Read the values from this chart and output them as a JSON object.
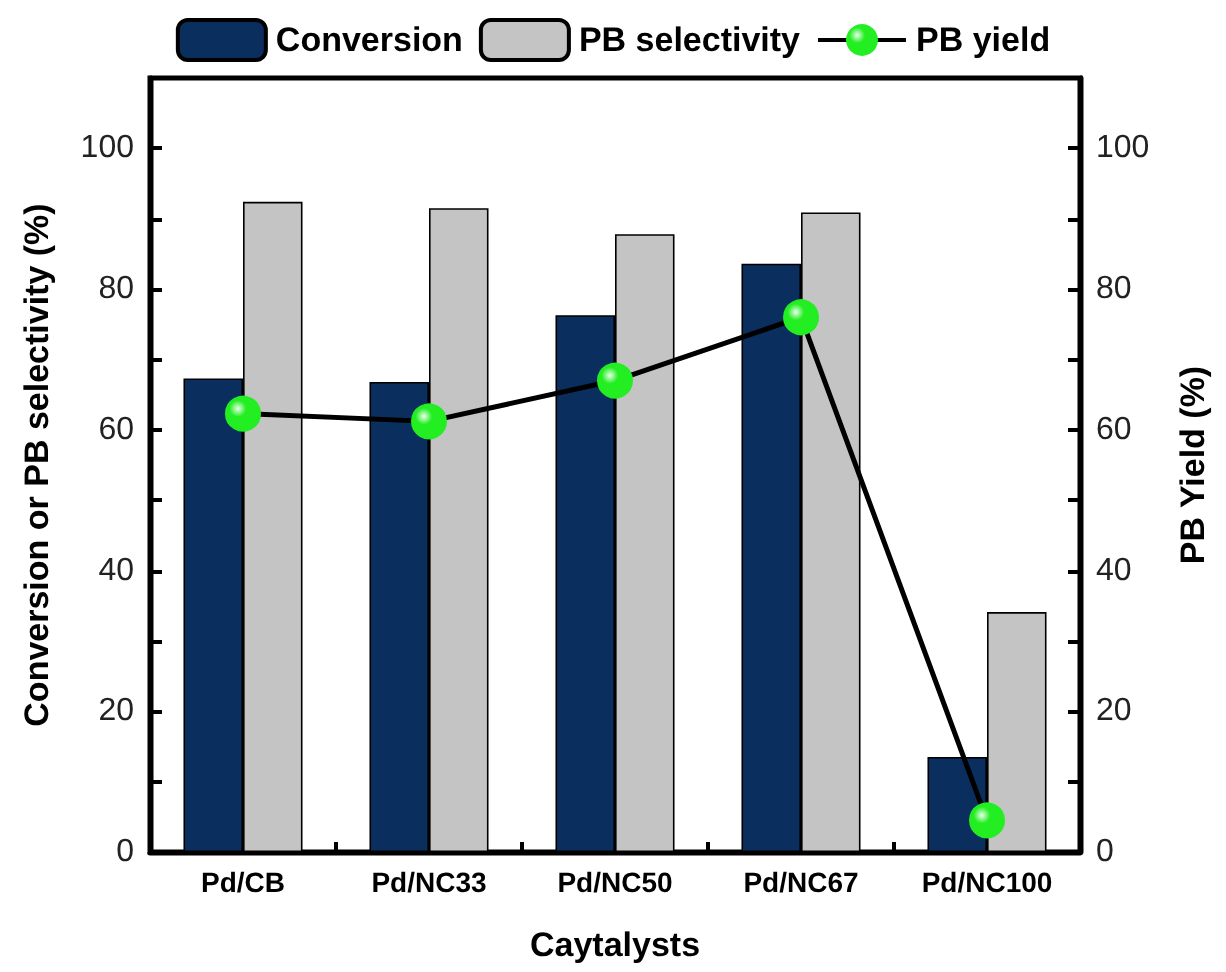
{
  "chart_data": {
    "type": "bar",
    "xlabel": "Caytalysts",
    "ylabel": "Conversion or PB selectivity (%)",
    "y2label": "PB Yield (%)",
    "categories": [
      "Pd/CB",
      "Pd/NC33",
      "Pd/NC50",
      "Pd/NC67",
      "Pd/NC100"
    ],
    "series": [
      {
        "name": "Conversion",
        "color": "#0a2f5e",
        "values": [
          67.3,
          66.8,
          76.3,
          83.6,
          13.5
        ]
      },
      {
        "name": "PB selectivity",
        "color": "#c4c4c4",
        "values": [
          92.4,
          91.5,
          87.8,
          90.9,
          34.1
        ]
      },
      {
        "name": "PB yield",
        "type": "line",
        "axis": "y2",
        "color": "#22ee22",
        "values": [
          62.3,
          61.2,
          67.0,
          76.0,
          4.5
        ]
      }
    ],
    "ylim": [
      0,
      110
    ],
    "yticks": [
      0,
      {
        "value": 10,
        "label": null
      },
      20,
      {
        "value": 30,
        "label": null
      },
      40,
      {
        "value": 50,
        "label": null
      },
      60,
      {
        "value": 70,
        "label": null
      },
      80,
      {
        "value": 90,
        "label": null
      },
      100
    ],
    "y2lim": [
      0,
      110
    ],
    "y2ticks": [
      0,
      {
        "value": 10,
        "label": null
      },
      20,
      {
        "value": 30,
        "label": null
      },
      40,
      {
        "value": 50,
        "label": null
      },
      60,
      {
        "value": 70,
        "label": null
      },
      80,
      {
        "value": 90,
        "label": null
      },
      100
    ],
    "grid": false,
    "legend": "top",
    "marker": "circle",
    "line_style": "solid"
  }
}
